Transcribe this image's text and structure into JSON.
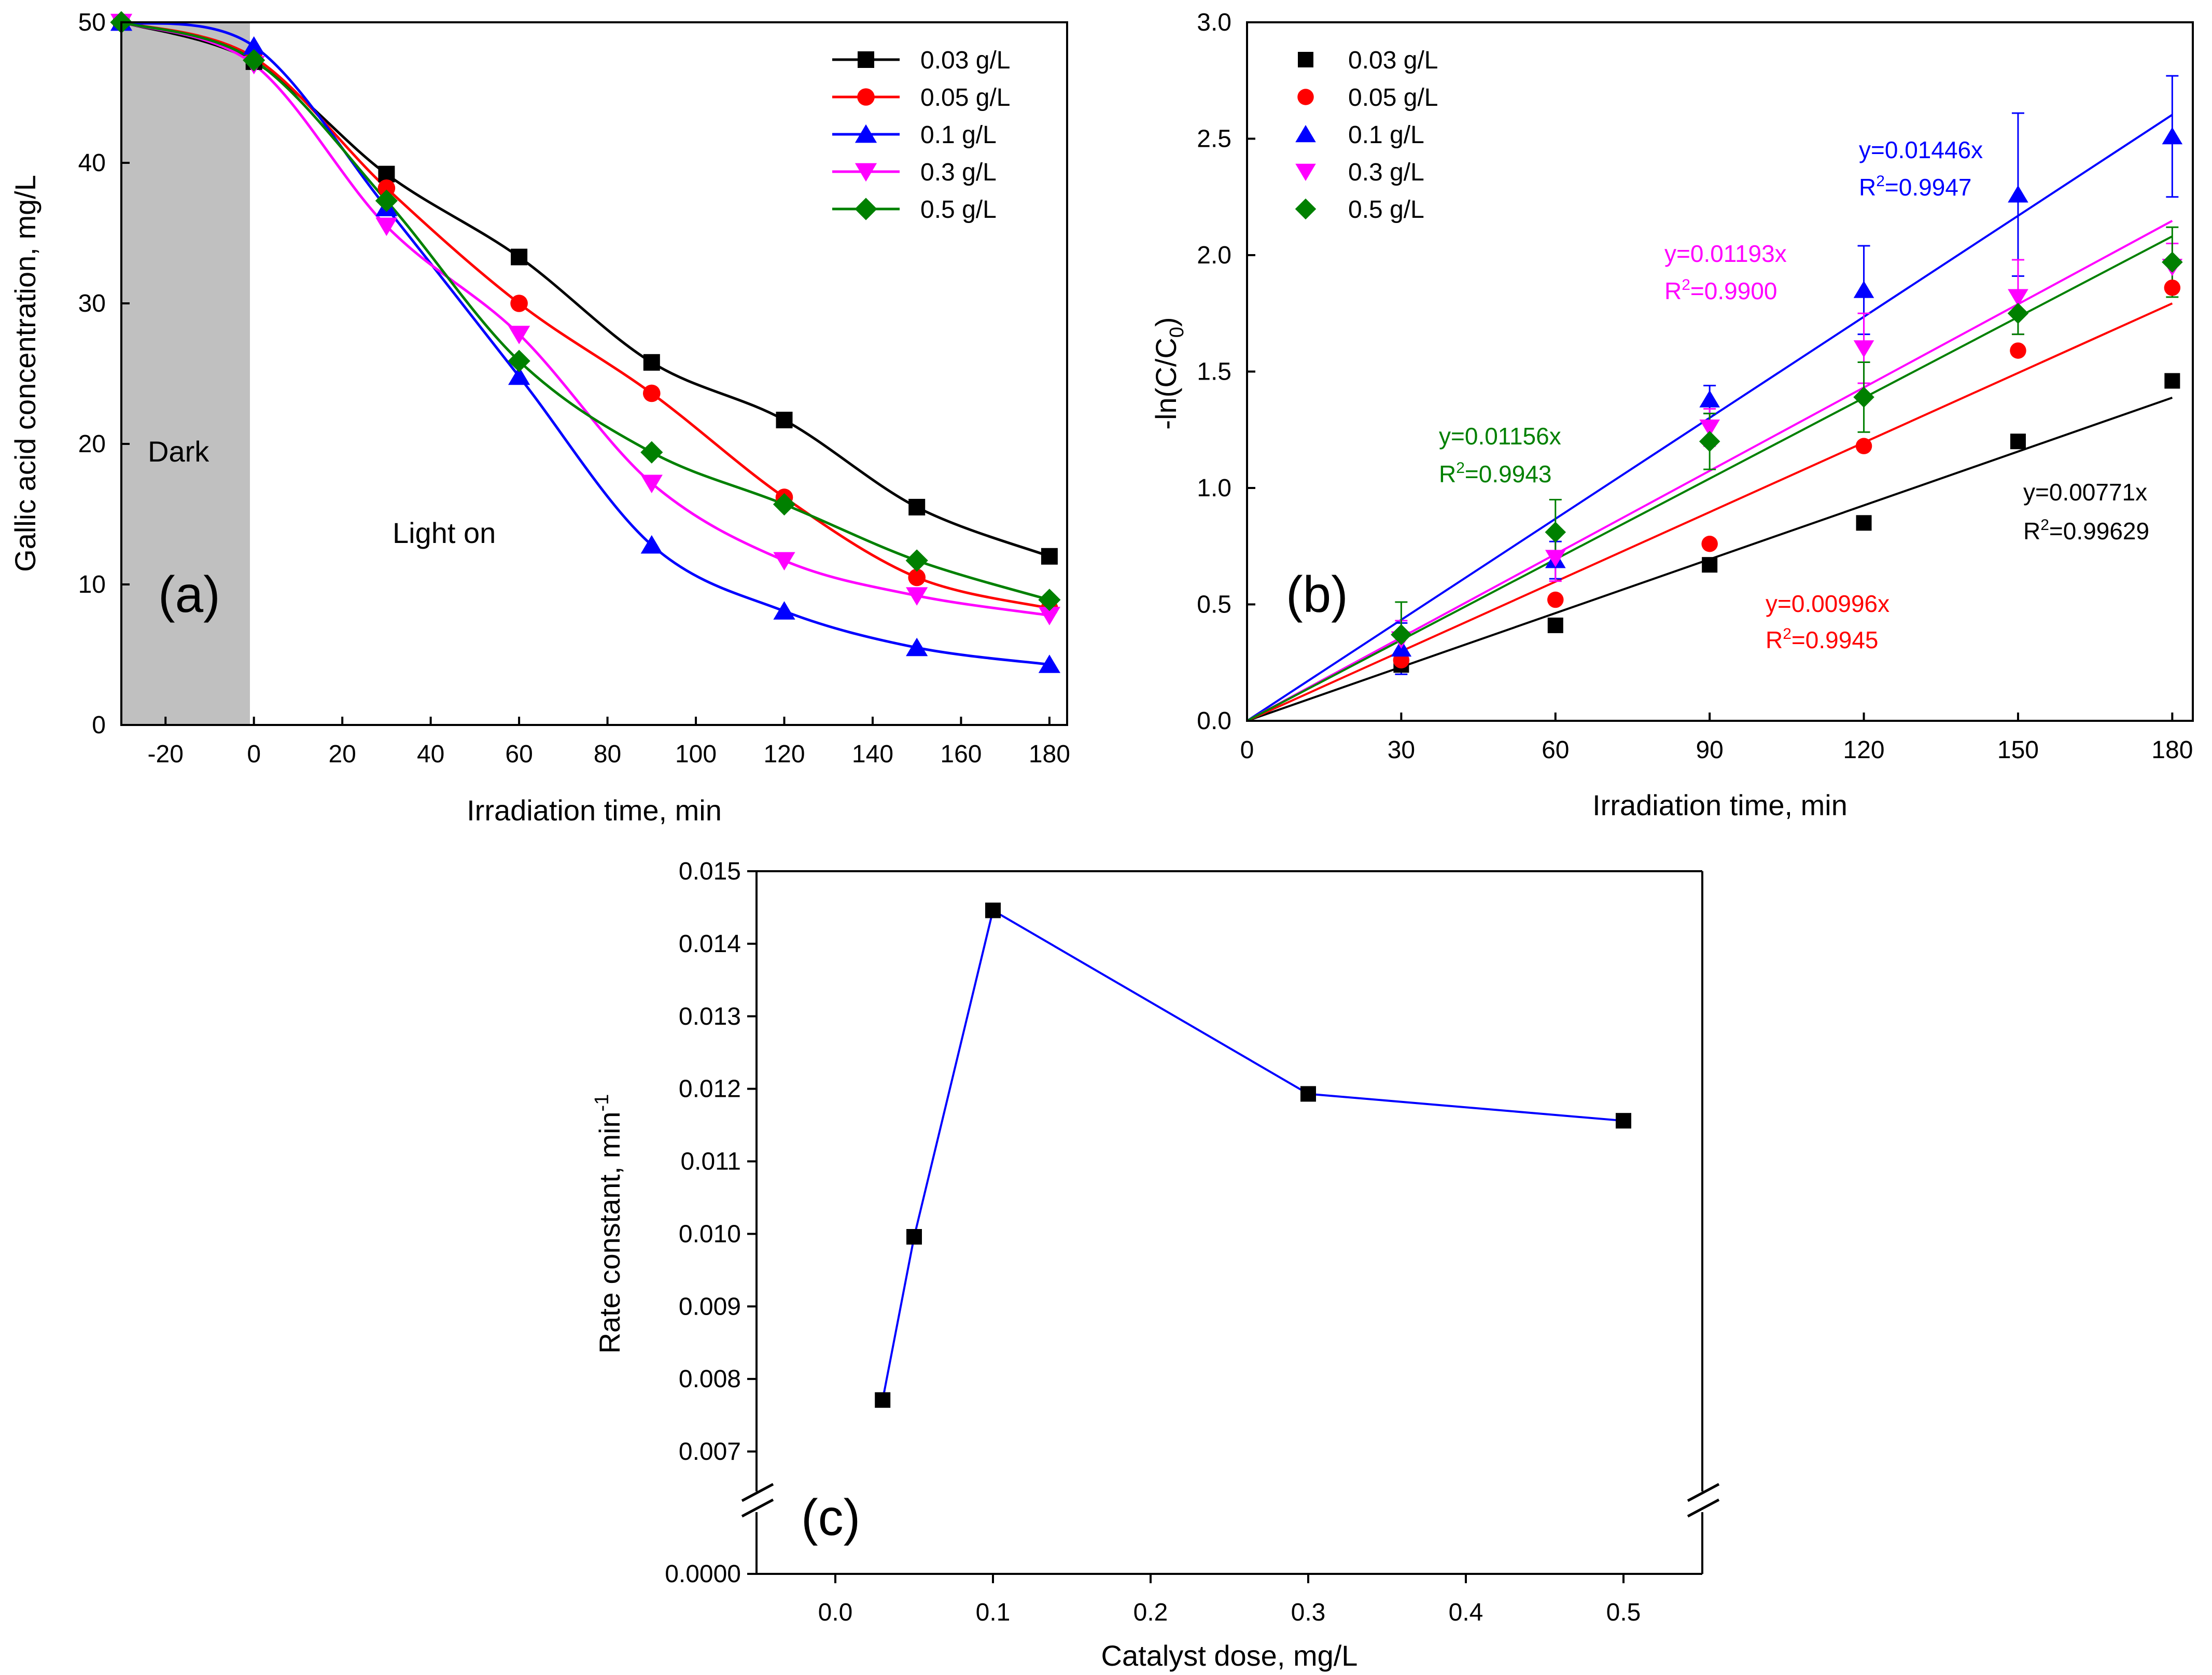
{
  "chart_data": [
    {
      "id": "a",
      "type": "line",
      "panel_label": "(a)",
      "title": "",
      "xlabel": "Irradiation time, min",
      "ylabel": "Gallic acid concentration, mg/L",
      "xlim": [
        -30,
        184
      ],
      "ylim": [
        0,
        50
      ],
      "xticks": [
        -20,
        0,
        20,
        40,
        60,
        80,
        100,
        120,
        140,
        160,
        180
      ],
      "yticks": [
        0,
        10,
        20,
        30,
        40,
        50
      ],
      "dark_region": {
        "x_from": -30,
        "x_to": -1,
        "label": "Dark"
      },
      "annotations": [
        {
          "text": "Light on"
        }
      ],
      "legend": "top-right",
      "x": [
        -30,
        0,
        30,
        60,
        90,
        120,
        150,
        180
      ],
      "series": [
        {
          "name": "0.03 g/L",
          "color": "#000000",
          "marker": "square",
          "values": [
            50,
            47.2,
            39.2,
            33.3,
            25.8,
            21.7,
            15.5,
            12.0
          ]
        },
        {
          "name": "0.05 g/L",
          "color": "#ff0000",
          "marker": "circle",
          "values": [
            50,
            47.5,
            38.2,
            30.0,
            23.6,
            16.2,
            10.5,
            8.3
          ]
        },
        {
          "name": "0.1 g/L",
          "color": "#0000ff",
          "marker": "triangle-up",
          "values": [
            50,
            48.3,
            36.8,
            24.8,
            12.8,
            8.1,
            5.5,
            4.3
          ]
        },
        {
          "name": "0.3 g/L",
          "color": "#ff00ff",
          "marker": "triangle-down",
          "values": [
            50,
            47.0,
            35.5,
            27.8,
            17.2,
            11.7,
            9.2,
            7.8
          ]
        },
        {
          "name": "0.5 g/L",
          "color": "#008000",
          "marker": "diamond",
          "values": [
            50,
            47.3,
            37.3,
            25.9,
            19.4,
            15.7,
            11.7,
            8.9
          ]
        }
      ]
    },
    {
      "id": "b",
      "type": "scatter",
      "panel_label": "(b)",
      "title": "",
      "xlabel": "Irradiation time, min",
      "ylabel_main": "-ln(C/C",
      "ylabel_sub": "0",
      "ylabel_close": ")",
      "xlim": [
        0,
        184
      ],
      "ylim": [
        0,
        3.0
      ],
      "xticks": [
        0,
        30,
        60,
        90,
        120,
        150,
        180
      ],
      "yticks": [
        "0.0",
        "0.5",
        "1.0",
        "1.5",
        "2.0",
        "2.5",
        "3.0"
      ],
      "legend": "top-left",
      "x": [
        30,
        60,
        90,
        120,
        150,
        180
      ],
      "series": [
        {
          "name": "0.03 g/L",
          "color": "#000000",
          "marker": "square",
          "values": [
            0.24,
            0.41,
            0.67,
            0.85,
            1.2,
            1.46
          ],
          "slope": 0.00771,
          "equation": "y=0.00771x",
          "r2": "=0.99629"
        },
        {
          "name": "0.05 g/L",
          "color": "#ff0000",
          "marker": "circle",
          "values": [
            0.26,
            0.52,
            0.76,
            1.18,
            1.59,
            1.86
          ],
          "slope": 0.00996,
          "equation": "y=0.00996x",
          "r2": "=0.9945"
        },
        {
          "name": "0.1 g/L",
          "color": "#0000ff",
          "marker": "triangle-up",
          "values": [
            0.31,
            0.69,
            1.38,
            1.85,
            2.26,
            2.51
          ],
          "errors": [
            0.11,
            0.08,
            0.06,
            0.19,
            0.35,
            0.26
          ],
          "slope": 0.01446,
          "equation": "y=0.01446x",
          "r2": "=0.9947"
        },
        {
          "name": "0.3 g/L",
          "color": "#ff00ff",
          "marker": "triangle-down",
          "values": [
            0.35,
            0.7,
            1.26,
            1.6,
            1.82,
            1.95
          ],
          "errors": [
            0.08,
            0.1,
            0.08,
            0.15,
            0.16,
            0.1
          ],
          "slope": 0.01193,
          "equation": "y=0.01193x",
          "r2": "=0.9900"
        },
        {
          "name": "0.5 g/L",
          "color": "#008000",
          "marker": "diamond",
          "values": [
            0.37,
            0.81,
            1.2,
            1.39,
            1.75,
            1.97
          ],
          "errors": [
            0.14,
            0.14,
            0.12,
            0.15,
            0.09,
            0.15
          ],
          "slope": 0.01156,
          "equation": "y=0.01156x",
          "r2": "=0.9943"
        }
      ]
    },
    {
      "id": "c",
      "type": "line",
      "panel_label": "(c)",
      "title": "",
      "xlabel": "Catalyst dose, mg/L",
      "ylabel_main": "Rate constant, min",
      "ylabel_sup": "-1",
      "xlim": [
        -0.05,
        0.55
      ],
      "xticks": [
        "0.0",
        "0.1",
        "0.2",
        "0.3",
        "0.4",
        "0.5"
      ],
      "ylim_upper": [
        0.0066,
        0.015
      ],
      "yticks_upper": [
        "0.007",
        "0.008",
        "0.009",
        "0.010",
        "0.011",
        "0.012",
        "0.013",
        "0.014",
        "0.015"
      ],
      "ytick_broken": "0.0000",
      "axis_break": true,
      "color": "#0000ff",
      "marker": "square",
      "x": [
        0.03,
        0.05,
        0.1,
        0.3,
        0.5
      ],
      "values": [
        0.00771,
        0.00996,
        0.01446,
        0.01193,
        0.01156
      ]
    }
  ]
}
